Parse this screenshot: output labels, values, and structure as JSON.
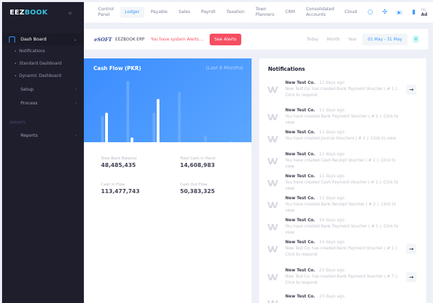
{
  "sidebar": {
    "logo_a": "EEZ",
    "logo_b": "BOOK",
    "dashboard": "Dash Board",
    "sub": [
      "Notifications",
      "Standard Dashboard",
      "Dynamic Dashboard"
    ],
    "groups": [
      "Setup",
      "Process"
    ],
    "section": "REPORTS",
    "reports": "Reports"
  },
  "topnav": {
    "tabs": [
      "Control Panel",
      "Ledger",
      "Payable",
      "Sales",
      "Payroll",
      "Taxation",
      "Town Planners",
      "CRM",
      "Consolidated Accounts",
      "Cloud"
    ],
    "active": "Ledger",
    "greeting": "Hi,",
    "user": "Ad"
  },
  "subbar": {
    "brand": "eSOFT",
    "erp": "EEZBOOK ERP",
    "alert": "You have system Alerts....",
    "see_alerts": "See Alerts",
    "periods": [
      "Today",
      "Month",
      "Year"
    ],
    "range": "01 May - 31 May"
  },
  "cashflow": {
    "title": "Cash Flow (PKR)",
    "subtitle": "(Last 6 Months)",
    "colors": {
      "light": "#7db5ff",
      "white": "#ffffff"
    },
    "bars": [
      [
        38,
        43
      ],
      [
        89,
        7
      ],
      [
        43,
        63
      ],
      [
        73,
        0
      ],
      [
        10,
        0
      ],
      [
        2,
        0
      ]
    ],
    "stats": [
      {
        "label": "Total Bank Balance",
        "value": "48,485,435"
      },
      {
        "label": "Total Cash in Hand",
        "value": "14,608,983"
      },
      {
        "label": "Cash in Flow",
        "value": "113,477,743"
      },
      {
        "label": "Cash Out Flow",
        "value": "50,383,325"
      }
    ]
  },
  "notifications": {
    "title": "Notifications",
    "items": [
      {
        "who": "New Test Co.",
        "when": "11 days ago",
        "msg": "New Test Co. has created Bank Payment Voucher ( # 1 ). Click to respond",
        "action": true
      },
      {
        "who": "New Test Co.",
        "when": "11 days ago",
        "msg": "You have created Bank Payment Voucher ( # 1 ). Click to view",
        "action": false
      },
      {
        "who": "New Test Co.",
        "when": "11 days ago",
        "msg": "You have created Journal Vouchers ( # 2 ). Click to view",
        "action": false
      },
      {
        "who": "New Test Co.",
        "when": "11 days ago",
        "msg": "You have created Cash Receipt Voucher ( # 1 ). Click to view",
        "action": false
      },
      {
        "who": "New Test Co.",
        "when": "11 days ago",
        "msg": "You have created Cash Payment Voucher ( # 1 ). Click to view",
        "action": false
      },
      {
        "who": "New Test Co.",
        "when": "11 days ago",
        "msg": "You have created Bank Receipt Voucher ( # 2 ). Click to view",
        "action": false
      },
      {
        "who": "New Test Co.",
        "when": "14 days ago",
        "msg": "You have created Bank Payment Voucher ( # 1 ). Click to view",
        "action": false
      },
      {
        "who": "New Test Co.",
        "when": "14 days ago",
        "msg": "New Test Co. has created Bank Payment Voucher ( # 1 ). Click to respond",
        "action": true
      },
      {
        "who": "New Test Co.",
        "when": "23 days ago",
        "msg": "New Test Co. has created Bank Payment Voucher ( # 7 ). Click to respond",
        "action": true
      },
      {
        "who": "New Test Co.",
        "when": "23 days ago",
        "msg": "",
        "action": false
      }
    ]
  }
}
